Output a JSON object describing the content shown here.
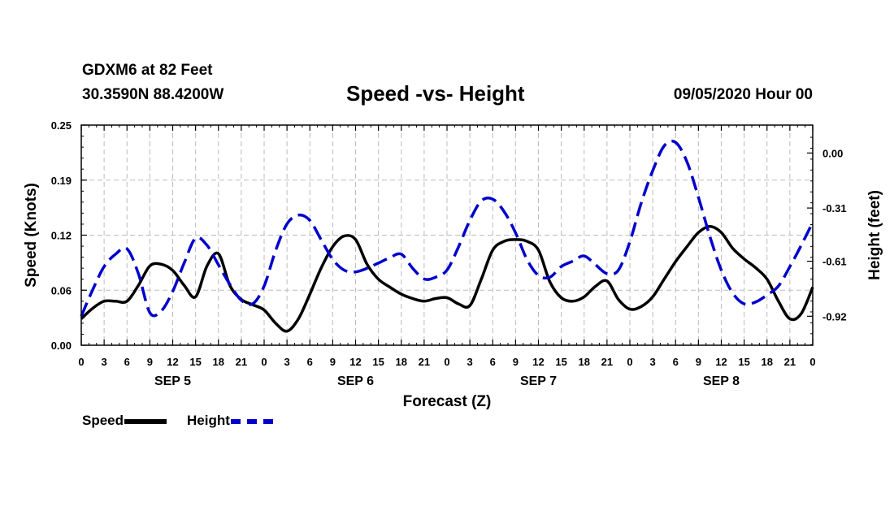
{
  "header": {
    "station": "GDXM6 at 82 Feet",
    "coords": "30.3590N 88.4200W",
    "title": "Speed -vs- Height",
    "timestamp": "09/05/2020 Hour 00"
  },
  "legend": {
    "speed_label": "Speed",
    "height_label": "Height"
  },
  "colors": {
    "speed": "#000000",
    "height": "#0000cc",
    "grid": "#bbbbbb"
  },
  "chart_data": {
    "type": "line",
    "title": "Speed -vs- Height",
    "xlabel": "Forecast (Z)",
    "ylabel": "Speed (Knots)",
    "y2label": "Height (feet)",
    "x_range_hours": [
      0,
      96
    ],
    "x_ticks": [
      {
        "h": 0,
        "label": "0"
      },
      {
        "h": 3,
        "label": "3"
      },
      {
        "h": 6,
        "label": "6"
      },
      {
        "h": 9,
        "label": "9"
      },
      {
        "h": 12,
        "label": "12"
      },
      {
        "h": 15,
        "label": "15"
      },
      {
        "h": 18,
        "label": "18"
      },
      {
        "h": 21,
        "label": "21"
      },
      {
        "h": 24,
        "label": "0"
      },
      {
        "h": 27,
        "label": "3"
      },
      {
        "h": 30,
        "label": "6"
      },
      {
        "h": 33,
        "label": "9"
      },
      {
        "h": 36,
        "label": "12"
      },
      {
        "h": 39,
        "label": "15"
      },
      {
        "h": 42,
        "label": "18"
      },
      {
        "h": 45,
        "label": "21"
      },
      {
        "h": 48,
        "label": "0"
      },
      {
        "h": 51,
        "label": "3"
      },
      {
        "h": 54,
        "label": "6"
      },
      {
        "h": 57,
        "label": "9"
      },
      {
        "h": 60,
        "label": "12"
      },
      {
        "h": 63,
        "label": "15"
      },
      {
        "h": 66,
        "label": "18"
      },
      {
        "h": 69,
        "label": "21"
      },
      {
        "h": 72,
        "label": "0"
      },
      {
        "h": 75,
        "label": "3"
      },
      {
        "h": 78,
        "label": "6"
      },
      {
        "h": 81,
        "label": "9"
      },
      {
        "h": 84,
        "label": "12"
      },
      {
        "h": 87,
        "label": "15"
      },
      {
        "h": 90,
        "label": "18"
      },
      {
        "h": 93,
        "label": "21"
      },
      {
        "h": 96,
        "label": "0"
      }
    ],
    "day_labels": [
      {
        "h": 12,
        "label": "SEP 5"
      },
      {
        "h": 36,
        "label": "SEP 6"
      },
      {
        "h": 60,
        "label": "SEP 7"
      },
      {
        "h": 84,
        "label": "SEP 8"
      }
    ],
    "y_left": {
      "range": [
        0,
        0.25
      ],
      "ticks": [
        {
          "v": 0,
          "label": "0.00"
        },
        {
          "v": 0.0625,
          "label": "0.06"
        },
        {
          "v": 0.125,
          "label": "0.12"
        },
        {
          "v": 0.1875,
          "label": "0.19"
        },
        {
          "v": 0.25,
          "label": "0.25"
        }
      ]
    },
    "y_right": {
      "range": [
        -1.0834,
        0.1574
      ],
      "ticks": [
        {
          "v": 0.0,
          "label": "0.00"
        },
        {
          "v": -0.31,
          "label": "-0.31"
        },
        {
          "v": -0.61,
          "label": "-0.61"
        },
        {
          "v": -0.92,
          "label": "-0.92"
        }
      ]
    },
    "series": [
      {
        "name": "Speed",
        "axis": "left",
        "style": "solid",
        "x": [
          0,
          1.5,
          3,
          4.5,
          6,
          7.5,
          9,
          10.5,
          12,
          13.5,
          15,
          16.5,
          18,
          19.5,
          21,
          22.5,
          24,
          25.5,
          27,
          28.5,
          30,
          31.5,
          33,
          34.5,
          36,
          37.5,
          39,
          40.5,
          42,
          43.5,
          45,
          46.5,
          48,
          49.5,
          51,
          52.5,
          54,
          55.5,
          57,
          58.5,
          60,
          61.5,
          63,
          64.5,
          66,
          67.5,
          69,
          70.5,
          72,
          73.5,
          75,
          76.5,
          78,
          79.5,
          81,
          82.5,
          84,
          85.5,
          87,
          88.5,
          90,
          91.5,
          93,
          94.5,
          96
        ],
        "values": [
          0.03,
          0.042,
          0.05,
          0.05,
          0.05,
          0.068,
          0.09,
          0.092,
          0.085,
          0.068,
          0.055,
          0.09,
          0.104,
          0.068,
          0.052,
          0.046,
          0.04,
          0.025,
          0.016,
          0.03,
          0.058,
          0.088,
          0.112,
          0.124,
          0.12,
          0.092,
          0.075,
          0.066,
          0.058,
          0.053,
          0.05,
          0.053,
          0.054,
          0.047,
          0.045,
          0.075,
          0.108,
          0.118,
          0.12,
          0.118,
          0.108,
          0.072,
          0.054,
          0.05,
          0.055,
          0.067,
          0.073,
          0.052,
          0.041,
          0.044,
          0.055,
          0.075,
          0.095,
          0.112,
          0.128,
          0.135,
          0.128,
          0.11,
          0.098,
          0.088,
          0.075,
          0.05,
          0.03,
          0.036,
          0.066
        ]
      },
      {
        "name": "Height",
        "axis": "right",
        "style": "dashed",
        "x": [
          0,
          1.5,
          3,
          4.5,
          6,
          7.5,
          9,
          10.5,
          12,
          13.5,
          15,
          16.5,
          18,
          19.5,
          21,
          22.5,
          24,
          25.5,
          27,
          28.5,
          30,
          31.5,
          33,
          34.5,
          36,
          37.5,
          39,
          40.5,
          42,
          43.5,
          45,
          46.5,
          48,
          49.5,
          51,
          52.5,
          54,
          55.5,
          57,
          58.5,
          60,
          61.5,
          63,
          64.5,
          66,
          67.5,
          69,
          70.5,
          72,
          73.5,
          75,
          76.5,
          78,
          79.5,
          81,
          82.5,
          84,
          85.5,
          87,
          88.5,
          90,
          91.5,
          93,
          94.5,
          96
        ],
        "values": [
          -0.92,
          -0.77,
          -0.64,
          -0.57,
          -0.54,
          -0.68,
          -0.9,
          -0.89,
          -0.78,
          -0.62,
          -0.48,
          -0.52,
          -0.63,
          -0.74,
          -0.83,
          -0.85,
          -0.75,
          -0.55,
          -0.4,
          -0.35,
          -0.38,
          -0.49,
          -0.6,
          -0.66,
          -0.67,
          -0.65,
          -0.62,
          -0.59,
          -0.57,
          -0.65,
          -0.71,
          -0.7,
          -0.66,
          -0.53,
          -0.38,
          -0.27,
          -0.26,
          -0.33,
          -0.45,
          -0.6,
          -0.69,
          -0.7,
          -0.64,
          -0.61,
          -0.58,
          -0.63,
          -0.68,
          -0.66,
          -0.5,
          -0.28,
          -0.1,
          0.04,
          0.06,
          -0.05,
          -0.25,
          -0.47,
          -0.66,
          -0.79,
          -0.85,
          -0.84,
          -0.8,
          -0.75,
          -0.64,
          -0.52,
          -0.39
        ]
      }
    ]
  }
}
